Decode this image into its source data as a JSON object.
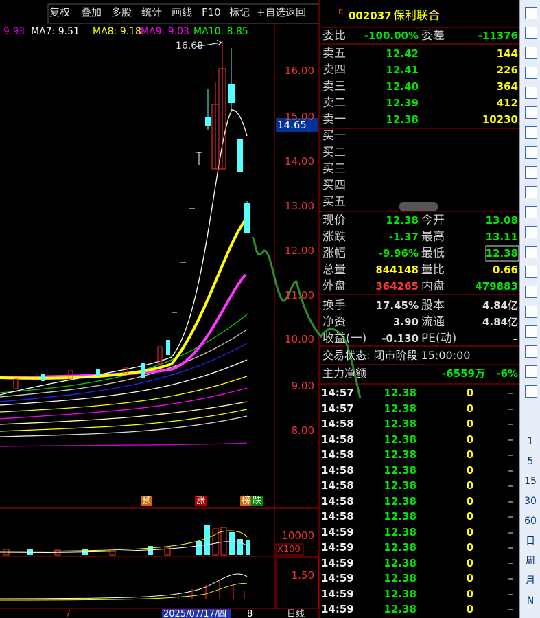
{
  "toolbar": [
    "复权",
    "叠加",
    "多股",
    "统计",
    "画线",
    "F10",
    "标记",
    "+自选",
    "返回"
  ],
  "ma_legend": [
    "9.93",
    "MA7: 9.51",
    "MA8: 9.18",
    "MA9: 9.03",
    "MA10: 8.85"
  ],
  "peak_label": "16.68",
  "price_axis": [
    "16.00",
    "15.00",
    "14.00",
    "13.00",
    "12.00",
    "11.00",
    "10.00",
    "9.00",
    "8.00"
  ],
  "current_price_tag": "14.65",
  "markers": [
    "预",
    "涨",
    "榜",
    "跌"
  ],
  "volume_axis": [
    "10000",
    "X100"
  ],
  "indicator_axis": [
    "1.50"
  ],
  "date_axis": [
    "7",
    "2025/07/17/四",
    "8",
    "日线"
  ],
  "quote": {
    "badge": "R",
    "code": "002037",
    "name": "保利联合",
    "order_ratio": [
      "委比",
      "-100.00%",
      "委差",
      "-11376"
    ],
    "asks": [
      [
        "卖五",
        "12.42",
        "144"
      ],
      [
        "卖四",
        "12.41",
        "226"
      ],
      [
        "卖三",
        "12.40",
        "364"
      ],
      [
        "卖二",
        "12.39",
        "412"
      ],
      [
        "卖一",
        "12.38",
        "10230"
      ]
    ],
    "bids": [
      "买一",
      "买二",
      "买三",
      "买四",
      "买五"
    ],
    "stats": [
      [
        "现价",
        "12.38",
        "今开",
        "13.08"
      ],
      [
        "涨跌",
        "-1.37",
        "最高",
        "13.11"
      ],
      [
        "涨幅",
        "-9.96%",
        "最低",
        "12.38"
      ],
      [
        "总量",
        "844148",
        "量比",
        "0.66"
      ],
      [
        "外盘",
        "364265",
        "内盘",
        "479883"
      ],
      [
        "换手",
        "17.45%",
        "股本",
        "4.84亿"
      ],
      [
        "净资",
        "3.90",
        "流通",
        "4.84亿"
      ],
      [
        "收益(一)",
        "-0.130",
        "PE(动)",
        "–"
      ]
    ],
    "status": "交易状态: 闭市阶段 15:00:00",
    "main_net": [
      "主力净额",
      "-6559万",
      "-6%"
    ],
    "ticks": [
      [
        "14:57",
        "12.38",
        "0",
        "–"
      ],
      [
        "14:57",
        "12.38",
        "0",
        "–"
      ],
      [
        "14:58",
        "12.38",
        "0",
        "–"
      ],
      [
        "14:58",
        "12.38",
        "0",
        "–"
      ],
      [
        "14:58",
        "12.38",
        "0",
        "–"
      ],
      [
        "14:58",
        "12.38",
        "0",
        "–"
      ],
      [
        "14:58",
        "12.38",
        "0",
        "–"
      ],
      [
        "14:58",
        "12.38",
        "0",
        "–"
      ],
      [
        "14:58",
        "12.38",
        "0",
        "–"
      ],
      [
        "14:59",
        "12.38",
        "0",
        "–"
      ],
      [
        "14:59",
        "12.38",
        "0",
        "–"
      ],
      [
        "14:59",
        "12.38",
        "0",
        "–"
      ],
      [
        "14:59",
        "12.38",
        "0",
        "–"
      ],
      [
        "14:59",
        "12.38",
        "0",
        "–"
      ],
      [
        "14:59",
        "12.38",
        "0",
        "–"
      ]
    ]
  },
  "sidebar": [
    "1",
    "5",
    "15",
    "30",
    "60",
    "日",
    "周",
    "月",
    "N"
  ]
}
